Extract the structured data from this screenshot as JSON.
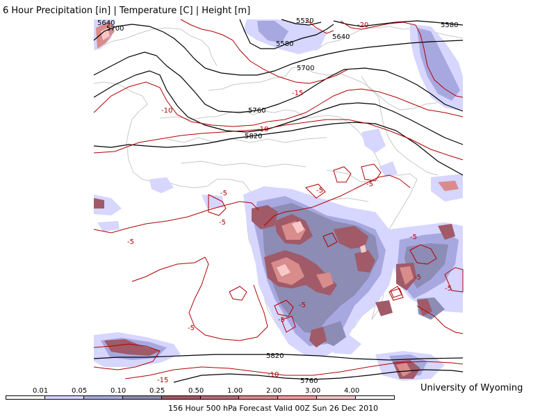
{
  "title": "6 Hour Precipitation [in] | Temperature [C] | Height [m]",
  "credit": "University of Wyoming",
  "footer": "156 Hour 500 hPa Forecast Valid 00Z Sun 26 Dec 2010",
  "colors": {
    "height_contour": "#000000",
    "temperature_contour": "#b00000",
    "coastline": "#c8c8c8",
    "precip_levels": [
      "#ffffff",
      "#d6d6ff",
      "#a8a8e0",
      "#8c8cb4",
      "#a05a68",
      "#b46e78",
      "#d88c8c",
      "#f0a0a0",
      "#f8c8c8",
      "#ffffff"
    ]
  },
  "legend": {
    "labels": [
      "0.01",
      "0.05",
      "0.10",
      "0.25",
      "0.50",
      "1.00",
      "2.00",
      "3.00",
      "4.00"
    ]
  },
  "height_labels": [
    "5640",
    "5700",
    "5520",
    "5640",
    "5580",
    "5580",
    "5700",
    "5760",
    "5820",
    "5820",
    "5760"
  ],
  "temperature_labels": [
    "-20",
    "-15",
    "-10",
    "-10",
    "-5",
    "-5",
    "-5",
    "-5",
    "-5",
    "-5",
    "-5",
    "-5",
    "-5",
    "-5",
    "-5",
    "-10",
    "-15"
  ]
}
